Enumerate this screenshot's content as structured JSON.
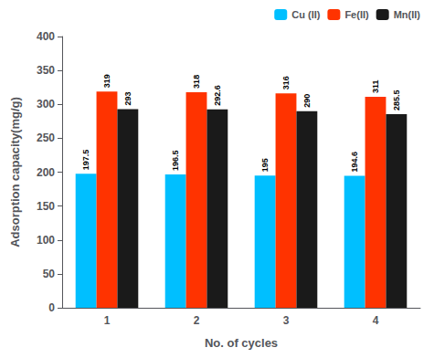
{
  "chart_data": {
    "type": "bar",
    "xlabel": "No. of cycles",
    "ylabel": "Adsorption capacity(mg/g)",
    "categories": [
      "1",
      "2",
      "3",
      "4"
    ],
    "series": [
      {
        "name": "Cu (II)",
        "color": "#00BFFF",
        "values": [
          197.5,
          196.5,
          195,
          194.6
        ]
      },
      {
        "name": "Fe(II)",
        "color": "#FF3300",
        "values": [
          319,
          318,
          316,
          311
        ]
      },
      {
        "name": "Mn(II)",
        "color": "#1a1a1a",
        "values": [
          293,
          292.6,
          290,
          285.5
        ]
      }
    ],
    "ylim": [
      0,
      400
    ],
    "yticks": [
      0,
      50,
      100,
      150,
      200,
      250,
      300,
      350,
      400
    ],
    "grid": false,
    "legend": "upper right",
    "data_labels": true
  }
}
